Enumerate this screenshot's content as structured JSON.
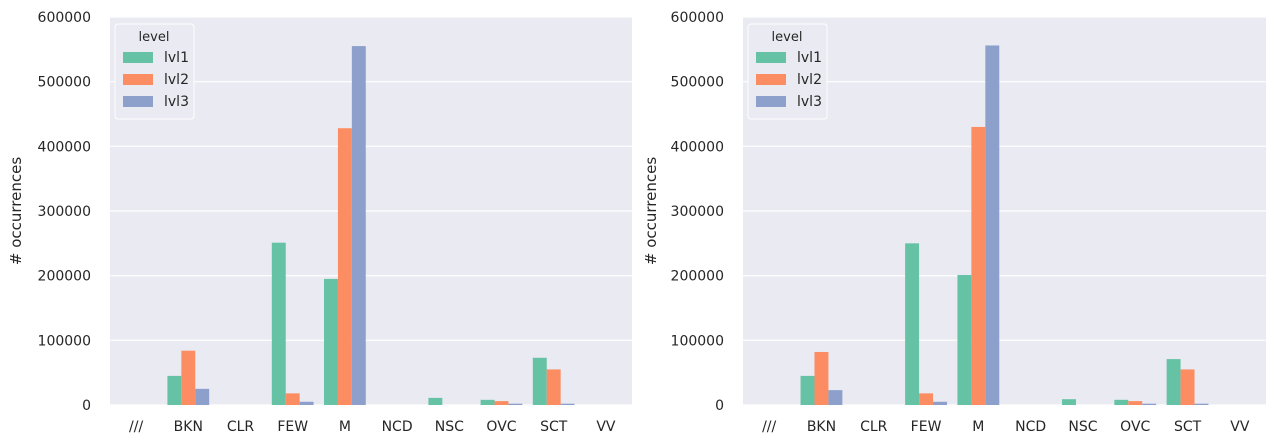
{
  "colors": {
    "background": "#eaeaf2",
    "grid": "#ffffff",
    "text": "#262626"
  },
  "chart_data": [
    {
      "type": "bar",
      "title": "",
      "xlabel": "",
      "ylabel": "# occurrences",
      "ylim": [
        0,
        600000
      ],
      "yticks": [
        0,
        100000,
        200000,
        300000,
        400000,
        500000,
        600000
      ],
      "grid": true,
      "legend": {
        "title": "level",
        "position": "top-left"
      },
      "categories": [
        "///",
        "BKN",
        "CLR",
        "FEW",
        "M",
        "NCD",
        "NSC",
        "OVC",
        "SCT",
        "VV"
      ],
      "series": [
        {
          "name": "lvl1",
          "color": "#66c2a5",
          "values": [
            0,
            45000,
            0,
            251000,
            195000,
            0,
            11000,
            8000,
            73000,
            0
          ]
        },
        {
          "name": "lvl2",
          "color": "#fc8d62",
          "values": [
            0,
            84000,
            0,
            18000,
            428000,
            0,
            0,
            6000,
            55000,
            0
          ]
        },
        {
          "name": "lvl3",
          "color": "#8da0cb",
          "values": [
            0,
            25000,
            0,
            5000,
            555000,
            0,
            0,
            2000,
            2000,
            0
          ]
        }
      ]
    },
    {
      "type": "bar",
      "title": "",
      "xlabel": "",
      "ylabel": "# occurrences",
      "ylim": [
        0,
        600000
      ],
      "yticks": [
        0,
        100000,
        200000,
        300000,
        400000,
        500000,
        600000
      ],
      "grid": true,
      "legend": {
        "title": "level",
        "position": "top-left"
      },
      "categories": [
        "///",
        "BKN",
        "CLR",
        "FEW",
        "M",
        "NCD",
        "NSC",
        "OVC",
        "SCT",
        "VV"
      ],
      "series": [
        {
          "name": "lvl1",
          "color": "#66c2a5",
          "values": [
            0,
            45000,
            0,
            250000,
            201000,
            0,
            9000,
            8000,
            71000,
            0
          ]
        },
        {
          "name": "lvl2",
          "color": "#fc8d62",
          "values": [
            0,
            82000,
            0,
            18000,
            430000,
            0,
            0,
            6000,
            55000,
            0
          ]
        },
        {
          "name": "lvl3",
          "color": "#8da0cb",
          "values": [
            0,
            23000,
            0,
            5000,
            556000,
            0,
            0,
            2000,
            2000,
            0
          ]
        }
      ]
    }
  ]
}
